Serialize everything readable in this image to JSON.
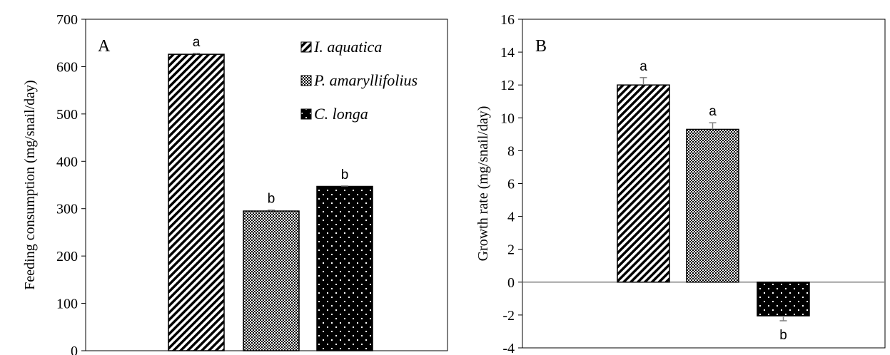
{
  "chart_data": [
    {
      "type": "bar",
      "panel_label": "A",
      "ylabel": "Feeding consumption (mg/snail/day)",
      "ylim": [
        0,
        700
      ],
      "yticks": [
        0,
        100,
        200,
        300,
        400,
        500,
        600,
        700
      ],
      "grid": false,
      "legend_position": "top-right",
      "series": [
        {
          "name": "I. aquatica",
          "value": 626,
          "error": 2,
          "letter": "a",
          "pattern": "diag"
        },
        {
          "name": "P. amaryllifolius",
          "value": 295,
          "error": 2,
          "letter": "b",
          "pattern": "checker"
        },
        {
          "name": "C. longa",
          "value": 347,
          "error": 1,
          "letter": "b",
          "pattern": "dots"
        }
      ]
    },
    {
      "type": "bar",
      "panel_label": "B",
      "ylabel": "Growth rate (mg/snail/day)",
      "ylim": [
        -4,
        16
      ],
      "yticks": [
        -4,
        -2,
        0,
        2,
        4,
        6,
        8,
        10,
        12,
        14,
        16
      ],
      "grid": false,
      "series": [
        {
          "value": 12.0,
          "error": 0.45,
          "letter": "a",
          "pattern": "diag"
        },
        {
          "value": 9.3,
          "error": 0.4,
          "letter": "a",
          "pattern": "checker"
        },
        {
          "value": -2.05,
          "error": 0.3,
          "letter": "b",
          "pattern": "dots"
        }
      ]
    }
  ],
  "colors": {
    "bar_fill_dark": "#000000",
    "bar_fill_light": "#ffffff",
    "error_bar": "#808080",
    "axis": "#000000"
  }
}
